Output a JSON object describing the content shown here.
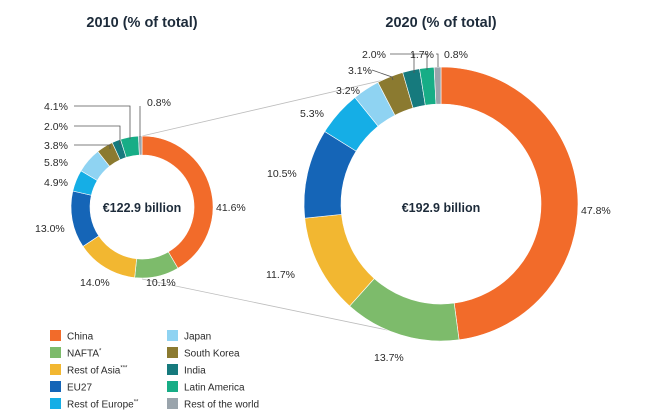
{
  "chart_data": [
    {
      "type": "donut",
      "title": "2010 (% of total)",
      "center_label": "€122.9 billion",
      "slices": [
        {
          "name": "China",
          "value": 41.6,
          "label": "41.6%"
        },
        {
          "name": "NAFTA",
          "value": 10.1,
          "label": "10.1%"
        },
        {
          "name": "Rest of Asia",
          "value": 14.0,
          "label": "14.0%"
        },
        {
          "name": "EU27",
          "value": 13.0,
          "label": "13.0%"
        },
        {
          "name": "Rest of Europe",
          "value": 4.9,
          "label": "4.9%"
        },
        {
          "name": "Japan",
          "value": 5.8,
          "label": "5.8%"
        },
        {
          "name": "South Korea",
          "value": 3.8,
          "label": "3.8%"
        },
        {
          "name": "India",
          "value": 2.0,
          "label": "2.0%"
        },
        {
          "name": "Latin America",
          "value": 4.1,
          "label": "4.1%"
        },
        {
          "name": "Rest of the world",
          "value": 0.8,
          "label": "0.8%"
        }
      ]
    },
    {
      "type": "donut",
      "title": "2020 (% of total)",
      "center_label": "€192.9 billion",
      "slices": [
        {
          "name": "China",
          "value": 47.8,
          "label": "47.8%"
        },
        {
          "name": "NAFTA",
          "value": 13.7,
          "label": "13.7%"
        },
        {
          "name": "Rest of Asia",
          "value": 11.7,
          "label": "11.7%"
        },
        {
          "name": "EU27",
          "value": 10.5,
          "label": "10.5%"
        },
        {
          "name": "Rest of Europe",
          "value": 5.3,
          "label": "5.3%"
        },
        {
          "name": "Japan",
          "value": 3.2,
          "label": "3.2%"
        },
        {
          "name": "South Korea",
          "value": 3.1,
          "label": "3.1%"
        },
        {
          "name": "India",
          "value": 2.0,
          "label": "2.0%"
        },
        {
          "name": "Latin America",
          "value": 1.7,
          "label": "1.7%"
        },
        {
          "name": "Rest of the world",
          "value": 0.8,
          "label": "0.8%"
        }
      ]
    }
  ],
  "legend": [
    {
      "name": "China",
      "suffix": "",
      "color": "#f26b2a"
    },
    {
      "name": "NAFTA",
      "suffix": "*",
      "color": "#7dbb6b"
    },
    {
      "name": "Rest of Asia",
      "suffix": "***",
      "color": "#f2b731"
    },
    {
      "name": "EU27",
      "suffix": "",
      "color": "#1565b7"
    },
    {
      "name": "Rest of Europe",
      "suffix": "**",
      "color": "#15aee6"
    },
    {
      "name": "Japan",
      "suffix": "",
      "color": "#8fd3f2"
    },
    {
      "name": "South Korea",
      "suffix": "",
      "color": "#8b7a30"
    },
    {
      "name": "India",
      "suffix": "",
      "color": "#167a7d"
    },
    {
      "name": "Latin America",
      "suffix": "",
      "color": "#17ad86"
    },
    {
      "name": "Rest of the world",
      "suffix": "",
      "color": "#9aa4ac"
    }
  ]
}
